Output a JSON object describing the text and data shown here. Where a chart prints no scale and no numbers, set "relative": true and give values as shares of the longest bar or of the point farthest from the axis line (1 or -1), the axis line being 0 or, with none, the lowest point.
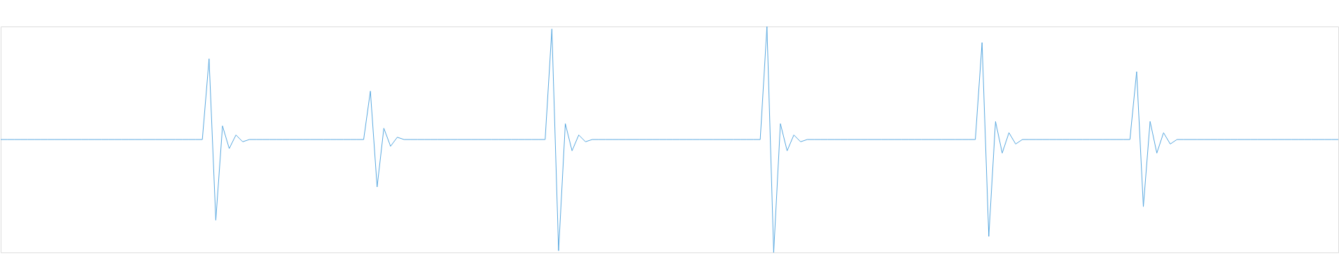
{
  "chart_data": {
    "type": "line",
    "relative": true,
    "color": "#5aa9e0",
    "line_style": "solid",
    "marker": "none",
    "categories": [
      null,
      null,
      null,
      null,
      null,
      null,
      null,
      null,
      null,
      null,
      null,
      null,
      null,
      null,
      null,
      null,
      null,
      null,
      null,
      null,
      null,
      null,
      null,
      null,
      null,
      null,
      null,
      null,
      null,
      null,
      null,
      null,
      null,
      null,
      null,
      null,
      null,
      null,
      null,
      null,
      null,
      null,
      null,
      null,
      null,
      null,
      null,
      null,
      null,
      null,
      null,
      null,
      null,
      null,
      null,
      null,
      null,
      null,
      null,
      null,
      null,
      null,
      null,
      null,
      null,
      null,
      null,
      null,
      null,
      null,
      null,
      null,
      null,
      null,
      null,
      null,
      null,
      null,
      null,
      null,
      null,
      null,
      null,
      null,
      null,
      null,
      null,
      null,
      null,
      null,
      null,
      null,
      null,
      null,
      null,
      null,
      null,
      null,
      null,
      null,
      null,
      null,
      null,
      null,
      null,
      null,
      null,
      null,
      null,
      null,
      null,
      null,
      null,
      null,
      null,
      null,
      null,
      null,
      null,
      null,
      null,
      null,
      null,
      null,
      null,
      null,
      null,
      null,
      null,
      null,
      null,
      null,
      null,
      null,
      null,
      null,
      null,
      null,
      null,
      null,
      null,
      null,
      null,
      null,
      null,
      null,
      null,
      null,
      null,
      null,
      null,
      null,
      null,
      null,
      null,
      null,
      null,
      null,
      null,
      null,
      null,
      null,
      null,
      null,
      null,
      null,
      null,
      null,
      null,
      null,
      null,
      null,
      null,
      null,
      null,
      null,
      null,
      null,
      null,
      null,
      null,
      null,
      null,
      null,
      null,
      null,
      null,
      null,
      null,
      null,
      null,
      null,
      null,
      null,
      null,
      null,
      null,
      null,
      null,
      null
    ],
    "values": [
      0.5,
      0.5,
      0.5,
      0.5,
      0.5,
      0.5,
      0.5,
      0.5,
      0.5,
      0.5,
      0.5,
      0.5,
      0.5,
      0.5,
      0.5,
      0.5,
      0.5,
      0.5,
      0.5,
      0.5,
      0.5,
      0.5,
      0.5,
      0.5,
      0.5,
      0.5,
      0.5,
      0.5,
      0.5,
      0.5,
      0.5,
      0.857,
      0.143,
      0.56,
      0.46,
      0.52,
      0.49,
      0.5,
      0.5,
      0.5,
      0.5,
      0.5,
      0.5,
      0.5,
      0.5,
      0.5,
      0.5,
      0.5,
      0.5,
      0.5,
      0.5,
      0.5,
      0.5,
      0.5,
      0.5,
      0.714,
      0.29,
      0.55,
      0.47,
      0.51,
      0.5,
      0.5,
      0.5,
      0.5,
      0.5,
      0.5,
      0.5,
      0.5,
      0.5,
      0.5,
      0.5,
      0.5,
      0.5,
      0.5,
      0.5,
      0.5,
      0.5,
      0.5,
      0.5,
      0.5,
      0.5,
      0.5,
      0.989,
      0.008,
      0.57,
      0.45,
      0.52,
      0.49,
      0.5,
      0.5,
      0.5,
      0.5,
      0.5,
      0.5,
      0.5,
      0.5,
      0.5,
      0.5,
      0.5,
      0.5,
      0.5,
      0.5,
      0.5,
      0.5,
      0.5,
      0.5,
      0.5,
      0.5,
      0.5,
      0.5,
      0.5,
      0.5,
      0.5,
      0.5,
      1.0,
      0.0,
      0.57,
      0.45,
      0.52,
      0.49,
      0.5,
      0.5,
      0.5,
      0.5,
      0.5,
      0.5,
      0.5,
      0.5,
      0.5,
      0.5,
      0.5,
      0.5,
      0.5,
      0.5,
      0.5,
      0.5,
      0.5,
      0.5,
      0.5,
      0.5,
      0.5,
      0.5,
      0.5,
      0.5,
      0.5,
      0.5,
      0.929,
      0.071,
      0.58,
      0.44,
      0.53,
      0.48,
      0.5,
      0.5,
      0.5,
      0.5,
      0.5,
      0.5,
      0.5,
      0.5,
      0.5,
      0.5,
      0.5,
      0.5,
      0.5,
      0.5,
      0.5,
      0.5,
      0.5,
      0.8,
      0.203,
      0.58,
      0.44,
      0.53,
      0.48,
      0.5,
      0.5,
      0.5,
      0.5,
      0.5,
      0.5,
      0.5,
      0.5,
      0.5,
      0.5,
      0.5,
      0.5,
      0.5,
      0.5,
      0.5,
      0.5,
      0.5,
      0.5,
      0.5,
      0.5,
      0.5,
      0.5,
      0.5,
      0.5,
      0.5
    ]
  }
}
